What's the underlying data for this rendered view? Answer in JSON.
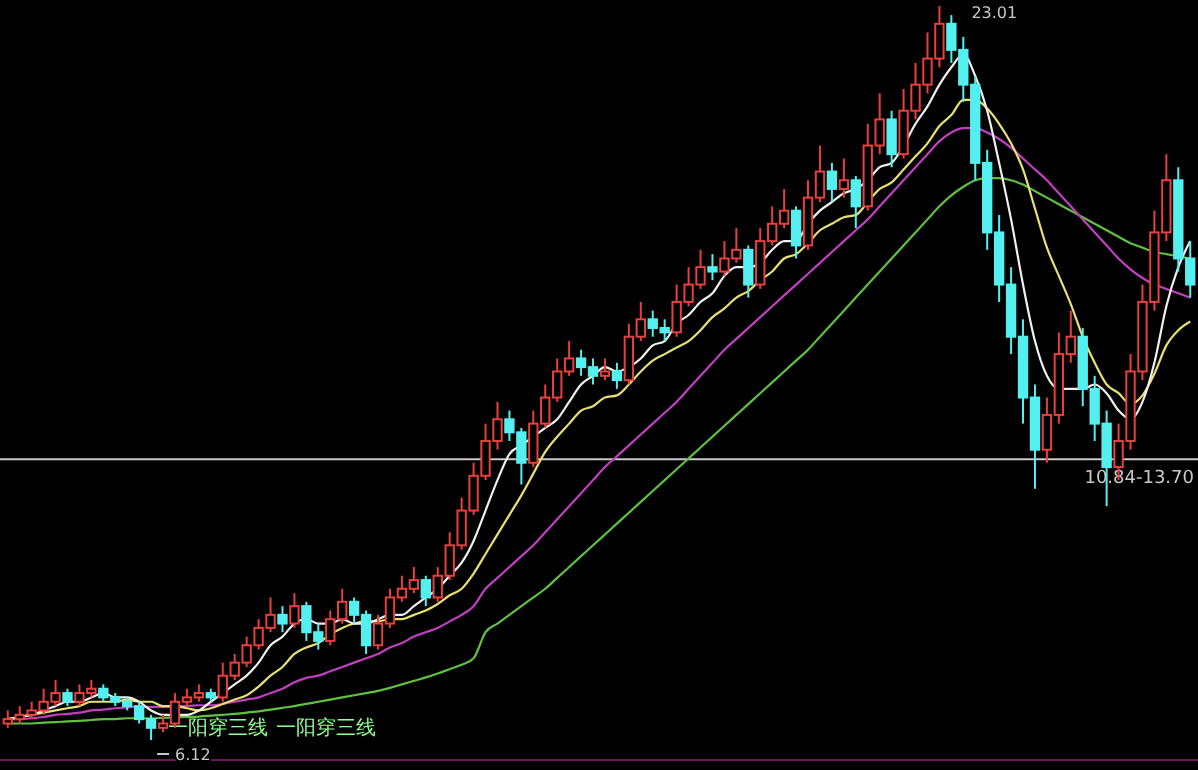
{
  "chart_data": {
    "type": "candlestick",
    "tick_labels": false,
    "colors": [
      "#e8403c",
      "#e8403c",
      "#e8403c",
      "#e8403c",
      "#e8403c",
      "#54f0f0",
      "#e8403c",
      "#e8403c",
      "#54f0f0",
      "#54f0f0",
      "#54f0f0",
      "#54f0f0",
      "#54f0f0",
      "#e8403c",
      "#e8403c",
      "#e8403c",
      "#e8403c",
      "#54f0f0",
      "#e8403c",
      "#e8403c",
      "#e8403c",
      "#e8403c",
      "#e8403c",
      "#54f0f0",
      "#e8403c",
      "#54f0f0",
      "#54f0f0",
      "#e8403c",
      "#e8403c",
      "#54f0f0",
      "#54f0f0",
      "#e8403c",
      "#e8403c",
      "#e8403c",
      "#e8403c",
      "#54f0f0",
      "#e8403c",
      "#e8403c",
      "#e8403c",
      "#e8403c",
      "#e8403c",
      "#e8403c",
      "#54f0f0",
      "#54f0f0",
      "#e8403c",
      "#e8403c",
      "#e8403c",
      "#e8403c",
      "#54f0f0",
      "#54f0f0",
      "#e8403c",
      "#54f0f0",
      "#e8403c",
      "#e8403c",
      "#54f0f0",
      "#54f0f0",
      "#e8403c",
      "#e8403c",
      "#e8403c",
      "#54f0f0",
      "#e8403c",
      "#e8403c",
      "#54f0f0",
      "#e8403c",
      "#e8403c",
      "#e8403c",
      "#54f0f0",
      "#e8403c",
      "#e8403c",
      "#54f0f0",
      "#e8403c",
      "#54f0f0",
      "#e8403c",
      "#e8403c",
      "#54f0f0",
      "#e8403c",
      "#e8403c",
      "#e8403c",
      "#e8403c",
      "#54f0f0",
      "#54f0f0",
      "#54f0f0",
      "#54f0f0",
      "#54f0f0",
      "#54f0f0",
      "#54f0f0",
      "#54f0f0",
      "#e8403c",
      "#e8403c",
      "#e8403c",
      "#54f0f0",
      "#54f0f0",
      "#54f0f0",
      "#e8403c",
      "#e8403c",
      "#e8403c",
      "#e8403c",
      "#e8403c",
      "#54f0f0",
      "#54f0f0"
    ],
    "categories": [
      null,
      null,
      null,
      null,
      null,
      null,
      null,
      null,
      null,
      null,
      null,
      null,
      null,
      null,
      null,
      null,
      null,
      null,
      null,
      null,
      null,
      null,
      null,
      null,
      null,
      null,
      null,
      null,
      null,
      null,
      null,
      null,
      null,
      null,
      null,
      null,
      null,
      null,
      null,
      null,
      null,
      null,
      null,
      null,
      null,
      null,
      null,
      null,
      null,
      null,
      null,
      null,
      null,
      null,
      null,
      null,
      null,
      null,
      null,
      null,
      null,
      null,
      null,
      null,
      null,
      null,
      null,
      null,
      null,
      null,
      null,
      null,
      null,
      null,
      null,
      null,
      null,
      null,
      null,
      null,
      null,
      null,
      null,
      null,
      null,
      null,
      null,
      null,
      null,
      null,
      null,
      null,
      null,
      null,
      null,
      null,
      null,
      null,
      null,
      null
    ],
    "ohlc": [
      [
        6.5,
        6.8,
        6.4,
        6.6
      ],
      [
        6.6,
        6.9,
        6.5,
        6.7
      ],
      [
        6.7,
        7.0,
        6.6,
        6.8
      ],
      [
        6.8,
        7.3,
        6.7,
        7.0
      ],
      [
        7.0,
        7.5,
        6.9,
        7.2
      ],
      [
        7.2,
        7.3,
        6.9,
        7.0
      ],
      [
        7.0,
        7.4,
        6.9,
        7.2
      ],
      [
        7.2,
        7.5,
        7.1,
        7.3
      ],
      [
        7.3,
        7.4,
        7.0,
        7.1
      ],
      [
        7.1,
        7.2,
        6.9,
        7.0
      ],
      [
        7.0,
        7.1,
        6.8,
        6.9
      ],
      [
        6.9,
        7.0,
        6.5,
        6.6
      ],
      [
        6.6,
        6.7,
        6.12,
        6.4
      ],
      [
        6.4,
        6.7,
        6.3,
        6.5
      ],
      [
        6.5,
        7.2,
        6.4,
        7.0
      ],
      [
        7.0,
        7.3,
        6.9,
        7.1
      ],
      [
        7.1,
        7.4,
        7.0,
        7.2
      ],
      [
        7.2,
        7.3,
        7.0,
        7.1
      ],
      [
        7.1,
        7.9,
        7.0,
        7.6
      ],
      [
        7.6,
        8.1,
        7.5,
        7.9
      ],
      [
        7.9,
        8.5,
        7.8,
        8.3
      ],
      [
        8.3,
        8.9,
        8.2,
        8.7
      ],
      [
        8.7,
        9.4,
        8.6,
        9.0
      ],
      [
        9.0,
        9.2,
        8.6,
        8.8
      ],
      [
        8.8,
        9.5,
        8.7,
        9.2
      ],
      [
        9.2,
        9.3,
        8.4,
        8.6
      ],
      [
        8.6,
        8.8,
        8.2,
        8.4
      ],
      [
        8.4,
        9.1,
        8.3,
        8.9
      ],
      [
        8.9,
        9.6,
        8.8,
        9.3
      ],
      [
        9.3,
        9.4,
        8.8,
        9.0
      ],
      [
        9.0,
        9.1,
        8.1,
        8.3
      ],
      [
        8.3,
        9.0,
        8.2,
        8.8
      ],
      [
        8.8,
        9.6,
        8.7,
        9.4
      ],
      [
        9.4,
        9.9,
        9.3,
        9.6
      ],
      [
        9.6,
        10.1,
        9.5,
        9.8
      ],
      [
        9.8,
        9.9,
        9.2,
        9.4
      ],
      [
        9.4,
        10.1,
        9.3,
        9.9
      ],
      [
        9.9,
        10.9,
        9.8,
        10.6
      ],
      [
        10.6,
        11.7,
        10.5,
        11.4
      ],
      [
        11.4,
        12.5,
        11.3,
        12.2
      ],
      [
        12.2,
        13.4,
        12.1,
        13.0
      ],
      [
        13.0,
        13.9,
        12.8,
        13.5
      ],
      [
        13.5,
        13.7,
        13.0,
        13.2
      ],
      [
        13.2,
        13.3,
        12.0,
        12.5
      ],
      [
        12.5,
        13.7,
        12.4,
        13.4
      ],
      [
        13.4,
        14.3,
        13.3,
        14.0
      ],
      [
        14.0,
        14.9,
        13.9,
        14.6
      ],
      [
        14.6,
        15.3,
        14.5,
        14.9
      ],
      [
        14.9,
        15.1,
        14.5,
        14.7
      ],
      [
        14.7,
        14.9,
        14.3,
        14.5
      ],
      [
        14.5,
        14.9,
        14.4,
        14.6
      ],
      [
        14.6,
        14.8,
        14.2,
        14.4
      ],
      [
        14.4,
        15.7,
        14.3,
        15.4
      ],
      [
        15.4,
        16.2,
        15.3,
        15.8
      ],
      [
        15.8,
        16.0,
        15.4,
        15.6
      ],
      [
        15.6,
        15.8,
        15.3,
        15.5
      ],
      [
        15.5,
        16.6,
        15.4,
        16.2
      ],
      [
        16.2,
        17.0,
        16.1,
        16.6
      ],
      [
        16.6,
        17.4,
        16.5,
        17.0
      ],
      [
        17.0,
        17.3,
        16.7,
        16.9
      ],
      [
        16.9,
        17.6,
        16.8,
        17.2
      ],
      [
        17.2,
        17.9,
        17.1,
        17.4
      ],
      [
        17.4,
        17.5,
        16.3,
        16.6
      ],
      [
        16.6,
        17.9,
        16.5,
        17.6
      ],
      [
        17.6,
        18.4,
        17.5,
        18.0
      ],
      [
        18.0,
        18.8,
        17.9,
        18.3
      ],
      [
        18.3,
        18.4,
        17.2,
        17.5
      ],
      [
        17.5,
        19.0,
        17.4,
        18.6
      ],
      [
        18.6,
        19.8,
        18.5,
        19.2
      ],
      [
        19.2,
        19.4,
        18.5,
        18.8
      ],
      [
        18.8,
        19.5,
        18.6,
        19.0
      ],
      [
        19.0,
        19.1,
        17.9,
        18.4
      ],
      [
        18.4,
        20.3,
        18.3,
        19.8
      ],
      [
        19.8,
        21.0,
        19.6,
        20.4
      ],
      [
        20.4,
        20.6,
        19.3,
        19.6
      ],
      [
        19.6,
        21.1,
        19.5,
        20.6
      ],
      [
        20.6,
        21.7,
        20.4,
        21.2
      ],
      [
        21.2,
        22.4,
        21.0,
        21.8
      ],
      [
        21.8,
        23.01,
        21.6,
        22.6
      ],
      [
        22.6,
        22.8,
        21.7,
        22.0
      ],
      [
        22.0,
        22.3,
        20.8,
        21.2
      ],
      [
        21.2,
        21.4,
        19.0,
        19.4
      ],
      [
        19.4,
        19.7,
        17.4,
        17.8
      ],
      [
        17.8,
        18.2,
        16.2,
        16.6
      ],
      [
        16.6,
        17.0,
        15.0,
        15.4
      ],
      [
        15.4,
        15.8,
        13.4,
        14.0
      ],
      [
        14.0,
        14.3,
        11.9,
        12.8
      ],
      [
        12.8,
        14.0,
        12.5,
        13.6
      ],
      [
        13.6,
        15.5,
        13.4,
        15.0
      ],
      [
        15.0,
        16.0,
        14.8,
        15.4
      ],
      [
        15.4,
        15.6,
        13.8,
        14.2
      ],
      [
        14.2,
        14.5,
        13.0,
        13.4
      ],
      [
        13.4,
        13.7,
        11.5,
        12.4
      ],
      [
        12.4,
        13.4,
        12.1,
        13.0
      ],
      [
        13.0,
        15.0,
        12.8,
        14.6
      ],
      [
        14.6,
        16.6,
        14.4,
        16.2
      ],
      [
        16.2,
        18.3,
        16.0,
        17.8
      ],
      [
        17.8,
        19.6,
        17.6,
        19.0
      ],
      [
        19.0,
        19.3,
        16.9,
        17.2
      ],
      [
        17.2,
        17.6,
        16.3,
        16.6
      ]
    ],
    "series": [
      {
        "type": "line",
        "color": "#60c040",
        "values": [
          6.5,
          6.5,
          6.5,
          6.52,
          6.53,
          6.55,
          6.56,
          6.58,
          6.6,
          6.6,
          6.62,
          6.62,
          6.62,
          6.63,
          6.64,
          6.65,
          6.66,
          6.68,
          6.7,
          6.72,
          6.75,
          6.78,
          6.82,
          6.86,
          6.9,
          6.95,
          7.0,
          7.05,
          7.1,
          7.15,
          7.2,
          7.25,
          7.32,
          7.4,
          7.48,
          7.56,
          7.65,
          7.75,
          7.85,
          8.0,
          8.6,
          8.8,
          9.0,
          9.2,
          9.4,
          9.6,
          9.85,
          10.1,
          10.35,
          10.6,
          10.85,
          11.1,
          11.35,
          11.6,
          11.85,
          12.1,
          12.35,
          12.6,
          12.85,
          13.1,
          13.35,
          13.6,
          13.85,
          14.1,
          14.35,
          14.6,
          14.85,
          15.1,
          15.4,
          15.7,
          16.0,
          16.3,
          16.6,
          16.9,
          17.2,
          17.5,
          17.8,
          18.1,
          18.4,
          18.65,
          18.85,
          19.0,
          19.05,
          19.05,
          19.0,
          18.9,
          18.75,
          18.6,
          18.45,
          18.3,
          18.15,
          18.0,
          17.85,
          17.7,
          17.55,
          17.45,
          17.35,
          17.3,
          17.25,
          17.2
        ]
      },
      {
        "type": "line",
        "color": "#c040c0",
        "values": [
          6.6,
          6.6,
          6.62,
          6.65,
          6.7,
          6.72,
          6.75,
          6.8,
          6.82,
          6.85,
          6.87,
          6.88,
          6.88,
          6.88,
          6.9,
          6.9,
          6.92,
          6.92,
          6.95,
          7.0,
          7.05,
          7.1,
          7.2,
          7.3,
          7.45,
          7.55,
          7.6,
          7.7,
          7.8,
          7.9,
          8.0,
          8.1,
          8.25,
          8.35,
          8.5,
          8.6,
          8.7,
          8.85,
          9.0,
          9.2,
          9.6,
          9.85,
          10.1,
          10.35,
          10.6,
          10.9,
          11.2,
          11.5,
          11.8,
          12.1,
          12.4,
          12.65,
          12.9,
          13.15,
          13.4,
          13.65,
          13.9,
          14.2,
          14.5,
          14.8,
          15.1,
          15.35,
          15.6,
          15.85,
          16.1,
          16.35,
          16.6,
          16.85,
          17.1,
          17.35,
          17.6,
          17.85,
          18.1,
          18.4,
          18.7,
          19.0,
          19.3,
          19.6,
          19.9,
          20.1,
          20.2,
          20.2,
          20.1,
          19.95,
          19.75,
          19.5,
          19.25,
          19.0,
          18.7,
          18.4,
          18.1,
          17.8,
          17.5,
          17.2,
          16.95,
          16.75,
          16.6,
          16.5,
          16.4,
          16.3
        ]
      },
      {
        "type": "line",
        "color": "#e8e070",
        "values": [
          6.6,
          6.65,
          6.7,
          6.75,
          6.8,
          6.85,
          6.9,
          7.0,
          7.0,
          7.0,
          7.05,
          7.0,
          7.0,
          6.9,
          6.9,
          6.85,
          6.8,
          6.85,
          6.95,
          7.05,
          7.15,
          7.35,
          7.6,
          7.8,
          8.1,
          8.25,
          8.35,
          8.55,
          8.7,
          8.8,
          8.85,
          8.85,
          8.9,
          8.9,
          9.0,
          9.1,
          9.25,
          9.45,
          9.6,
          9.95,
          10.4,
          10.85,
          11.3,
          11.75,
          12.25,
          12.75,
          13.1,
          13.4,
          13.7,
          13.8,
          14.0,
          14.05,
          14.3,
          14.6,
          14.85,
          15.0,
          15.15,
          15.3,
          15.55,
          15.85,
          16.05,
          16.3,
          16.45,
          16.7,
          16.9,
          17.2,
          17.3,
          17.55,
          17.85,
          18.0,
          18.15,
          18.2,
          18.5,
          18.8,
          18.95,
          19.25,
          19.55,
          19.85,
          20.25,
          20.5,
          20.85,
          20.85,
          20.65,
          20.3,
          19.85,
          19.25,
          18.35,
          17.45,
          16.8,
          16.15,
          15.4,
          14.8,
          14.3,
          14.1,
          13.85,
          14.05,
          14.55,
          15.2,
          15.55,
          15.75
        ]
      },
      {
        "type": "line",
        "color": "#f0f0f0",
        "values": [
          6.6,
          6.65,
          6.7,
          6.8,
          6.9,
          7.0,
          7.0,
          7.1,
          7.2,
          7.1,
          7.1,
          7.0,
          6.8,
          6.7,
          6.7,
          6.7,
          6.8,
          7.0,
          7.2,
          7.4,
          7.6,
          7.9,
          8.3,
          8.5,
          8.8,
          8.9,
          8.8,
          8.8,
          8.9,
          8.8,
          8.8,
          8.9,
          9.0,
          9.0,
          9.2,
          9.4,
          9.6,
          9.9,
          10.2,
          10.7,
          11.4,
          12.1,
          12.7,
          12.9,
          13.1,
          13.3,
          13.5,
          13.9,
          14.3,
          14.5,
          14.7,
          14.6,
          14.7,
          14.9,
          15.2,
          15.3,
          15.7,
          15.9,
          16.2,
          16.4,
          16.8,
          17.0,
          17.0,
          17.1,
          17.4,
          17.6,
          17.6,
          18.0,
          18.3,
          18.5,
          18.7,
          18.8,
          19.0,
          19.3,
          19.4,
          19.8,
          20.3,
          20.7,
          21.2,
          21.6,
          21.9,
          21.4,
          20.6,
          19.4,
          18.1,
          16.6,
          15.3,
          14.5,
          14.2,
          14.2,
          14.2,
          14.3,
          14.1,
          13.7,
          13.5,
          13.9,
          14.8,
          16.1,
          17.0,
          17.6
        ]
      }
    ],
    "ref_lines": [
      {
        "axis": "y",
        "value": 12.58,
        "color": "#c8c8c8"
      }
    ],
    "annotations": [
      "23.01",
      "6.12",
      "10.84-13.70",
      "一阳穿三线",
      "一阳穿三线"
    ]
  }
}
